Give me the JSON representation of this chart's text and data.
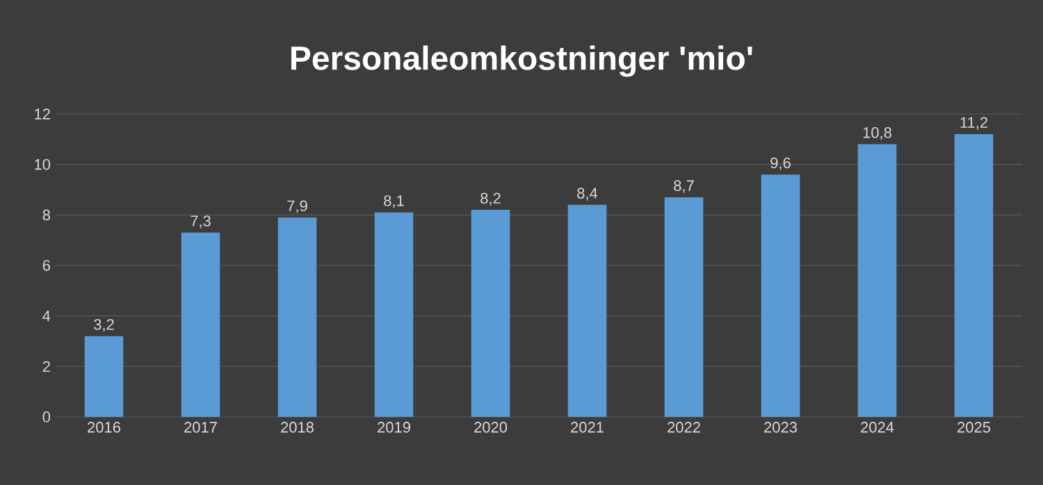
{
  "chart_data": {
    "type": "bar",
    "title": "Personaleomkostninger 'mio'",
    "categories": [
      "2016",
      "2017",
      "2018",
      "2019",
      "2020",
      "2021",
      "2022",
      "2023",
      "2024",
      "2025"
    ],
    "values": [
      3.2,
      7.3,
      7.9,
      8.1,
      8.2,
      8.4,
      8.7,
      9.6,
      10.8,
      11.2
    ],
    "value_labels": [
      "3,2",
      "7,3",
      "7,9",
      "8,1",
      "8,2",
      "8,4",
      "8,7",
      "9,6",
      "10,8",
      "11,2"
    ],
    "color": "#5b9bd5",
    "ylim": [
      0,
      12
    ],
    "yticks": [
      0,
      2,
      4,
      6,
      8,
      10,
      12
    ],
    "grid": "y"
  }
}
